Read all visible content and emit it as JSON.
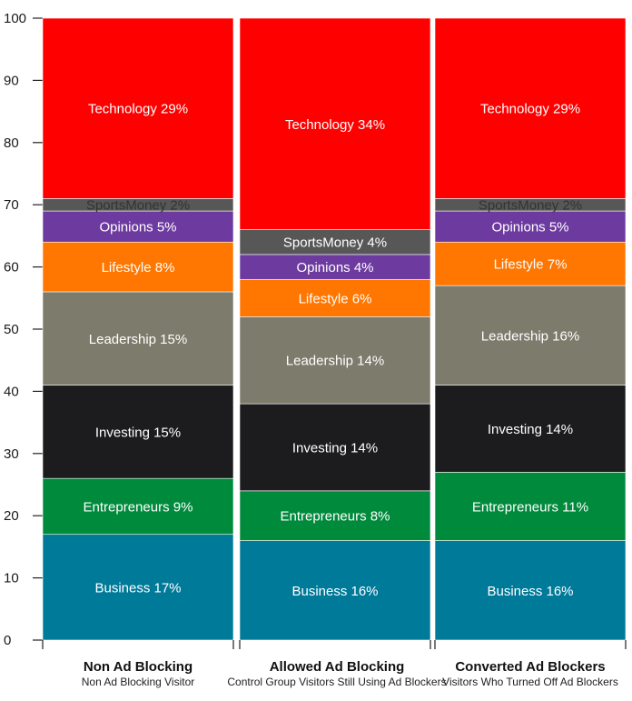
{
  "chart_data": {
    "type": "bar",
    "stacked": true,
    "categories": [
      "Non Ad Blocking",
      "Allowed Ad Blocking",
      "Converted Ad Blockers"
    ],
    "subtitles": [
      "Non Ad Blocking Visitor",
      "Control Group Visitors Still Using Ad Blockers",
      "Visitors Who Turned Off Ad Blockers"
    ],
    "ylim": [
      0,
      100
    ],
    "yticks": [
      0,
      10,
      20,
      30,
      40,
      50,
      60,
      70,
      80,
      90,
      100
    ],
    "grid": false,
    "series": [
      {
        "name": "Business",
        "color": "#007a99",
        "values": [
          17,
          16,
          16
        ],
        "labels": [
          "Business 17%",
          "Business 16%",
          "Business 16%"
        ]
      },
      {
        "name": "Entrepreneurs",
        "color": "#008a3c",
        "values": [
          9,
          8,
          11
        ],
        "labels": [
          "Entrepreneurs 9%",
          "Entrepreneurs 8%",
          "Entrepreneurs 11%"
        ]
      },
      {
        "name": "Investing",
        "color": "#1c1c1e",
        "values": [
          15,
          14,
          14
        ],
        "labels": [
          "Investing 15%",
          "Investing 14%",
          "Investing 14%"
        ]
      },
      {
        "name": "Leadership",
        "color": "#7d7b6c",
        "values": [
          15,
          14,
          16
        ],
        "labels": [
          "Leadership 15%",
          "Leadership 14%",
          "Leadership 16%"
        ]
      },
      {
        "name": "Lifestyle",
        "color": "#ff7600",
        "values": [
          8,
          6,
          7
        ],
        "labels": [
          "Lifestyle 8%",
          "Lifestyle 6%",
          "Lifestyle 7%"
        ]
      },
      {
        "name": "Opinions",
        "color": "#6d3aa0",
        "values": [
          5,
          4,
          5
        ],
        "labels": [
          "Opinions 5%",
          "Opinions 4%",
          "Opinions 5%"
        ]
      },
      {
        "name": "SportsMoney",
        "color": "#575757",
        "values": [
          2,
          4,
          2
        ],
        "labels": [
          "SportsMoney 2%",
          "SportsMoney 4%",
          "SportsMoney 2%"
        ]
      },
      {
        "name": "Technology",
        "color": "#ff0000",
        "values": [
          29,
          34,
          29
        ],
        "labels": [
          "Technology 29%",
          "Technology 34%",
          "Technology 29%"
        ]
      }
    ]
  }
}
